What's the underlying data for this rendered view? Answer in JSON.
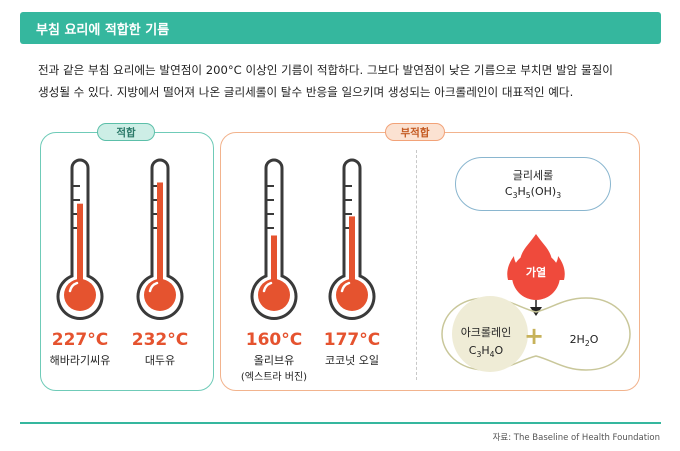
{
  "header": {
    "title": "부침 요리에 적합한 기름"
  },
  "intro": {
    "line1": "전과 같은 부침 요리에는 발연점이 200°C 이상인 기름이 적합하다. 그보다 발연점이 낮은 기름으로 부치면 발암 물질이",
    "line2": "생성될 수 있다. 지방에서 떨어져 나온 글리세롤이 탈수 반응을 일으키며 생성되는 아크롤레인이 대표적인 예다."
  },
  "suitable": {
    "tag": "적합",
    "oils": [
      {
        "temp": "227°C",
        "name": "해바라기씨유",
        "fill": 0.72
      },
      {
        "temp": "232°C",
        "name": "대두유",
        "fill": 0.92
      }
    ]
  },
  "unsuitable": {
    "tag": "부적합",
    "oils": [
      {
        "temp": "160°C",
        "name": "올리브유",
        "note": "(엑스트라 버진)",
        "fill": 0.42
      },
      {
        "temp": "177°C",
        "name": "코코넛 오일",
        "fill": 0.6
      }
    ]
  },
  "reaction": {
    "reactant_name": "글리세롤",
    "reactant_formula": {
      "a": "C",
      "b": "3",
      "c": "H",
      "d": "5",
      "e": "(OH)",
      "f": "3"
    },
    "heat_label": "가열",
    "product_name": "아크롤레인",
    "product_formula": {
      "a": "C",
      "b": "3",
      "c": "H",
      "d": "4",
      "e": "O"
    },
    "plus": "+",
    "water_formula": {
      "a": "2H",
      "b": "2",
      "c": "O"
    }
  },
  "source": "자료: The Baseline of Health Foundation",
  "colors": {
    "accent": "#35b79e",
    "mercury": "#e5532f",
    "thermo_outline": "#3a3a3a",
    "suitable_border": "#6fcbb8",
    "unsuitable_border": "#f2b38d",
    "flame": "#ef4a3c",
    "product_fill": "#efecd6",
    "plus": "#c7b25a"
  }
}
